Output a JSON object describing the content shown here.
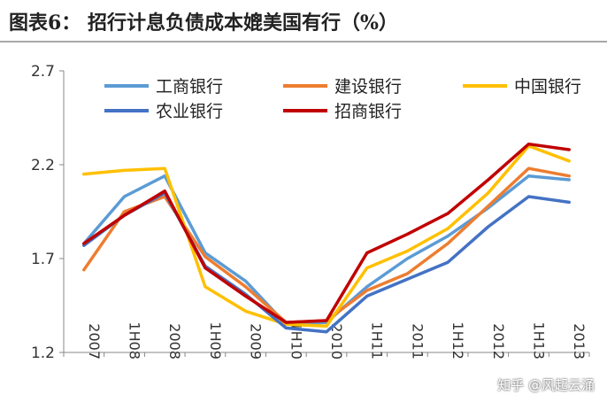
{
  "title": "图表6：  招行计息负债成本媲美国有行（%）",
  "watermark": "知乎 @风起云涌",
  "chart_data": {
    "type": "line",
    "categories": [
      "2007",
      "1H08",
      "2008",
      "1H09",
      "2009",
      "1H10",
      "2010",
      "1H11",
      "2011",
      "1H12",
      "2012",
      "1H13",
      "2013"
    ],
    "ylim": [
      1.2,
      2.7
    ],
    "yticks": [
      "1.2",
      "1.7",
      "2.2",
      "2.7"
    ],
    "grid": false,
    "legend_position": "top",
    "series": [
      {
        "name": "工商银行",
        "color": "#5b9bd5",
        "values": [
          1.78,
          2.03,
          2.14,
          1.73,
          1.58,
          1.35,
          1.36,
          1.55,
          1.7,
          1.82,
          1.97,
          2.14,
          2.12
        ]
      },
      {
        "name": "建设银行",
        "color": "#ed7d31",
        "values": [
          1.64,
          1.95,
          2.03,
          1.71,
          1.55,
          1.36,
          1.37,
          1.53,
          1.62,
          1.78,
          1.98,
          2.18,
          2.14
        ]
      },
      {
        "name": "中国银行",
        "color": "#ffc000",
        "values": [
          2.15,
          2.17,
          2.18,
          1.55,
          1.42,
          1.35,
          1.34,
          1.65,
          1.74,
          1.86,
          2.05,
          2.3,
          2.22
        ]
      },
      {
        "name": "农业银行",
        "color": "#4472c4",
        "values": [
          1.77,
          1.93,
          2.05,
          1.66,
          1.51,
          1.33,
          1.31,
          1.5,
          1.59,
          1.68,
          1.87,
          2.03,
          2.0
        ]
      },
      {
        "name": "招商银行",
        "color": "#c00000",
        "values": [
          1.78,
          1.93,
          2.06,
          1.65,
          1.5,
          1.36,
          1.37,
          1.73,
          1.83,
          1.94,
          2.12,
          2.31,
          2.28
        ]
      }
    ]
  }
}
